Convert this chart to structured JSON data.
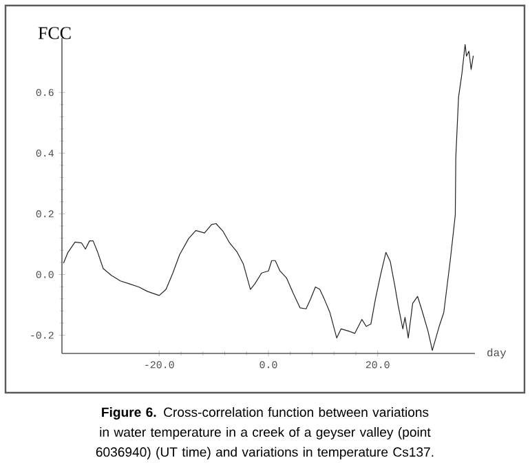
{
  "chart_data": {
    "type": "line",
    "xlabel": "day",
    "ylabel": "FCC",
    "annotations": [
      "**Figure 6.** Cross-correlation function between variations in water temperature in a creek of a geyser valley (point 6036940) (UT time) and variations in temperature Cs137."
    ],
    "xlim": [
      -37.8,
      37.8
    ],
    "ylim": [
      -0.26,
      0.78
    ],
    "xticks": [
      {
        "value": -20,
        "label": "-20.0"
      },
      {
        "value": 0,
        "label": "0.0"
      },
      {
        "value": 20,
        "label": "20.0"
      }
    ],
    "yticks": [
      -0.2,
      {
        "value": 0,
        "label": "0.0"
      },
      0.2,
      0.4,
      0.6
    ],
    "color": "#222222",
    "x": [
      -37.5,
      -36.7,
      -35.4,
      -34.2,
      -33.5,
      -32.75,
      -32.1,
      -31.25,
      -30.25,
      -28.75,
      -27.1,
      -25.4,
      -23.75,
      -22.1,
      -20,
      -18.75,
      -17.5,
      -16.25,
      -14.6,
      -13.3,
      -11.7,
      -10.4,
      -9.6,
      -8.3,
      -7.1,
      -5.8,
      -4.6,
      -3.3,
      -2.5,
      -1.25,
      0,
      0.6,
      1.25,
      2.1,
      3.3,
      4.6,
      5.8,
      6.9,
      7.75,
      8.6,
      9.4,
      10.25,
      11.25,
      12.5,
      13.3,
      14.6,
      15.8,
      17.1,
      17.9,
      18.75,
      19.6,
      20.6,
      21.5,
      22.3,
      23.1,
      23.75,
      24.6,
      25,
      25.6,
      26.4,
      27.3,
      28.1,
      29.2,
      30,
      31.25,
      32.1,
      33.3,
      34.2,
      34.3,
      34.8,
      35.4,
      36,
      36.25,
      36.7,
      37.1,
      37.5
    ],
    "values": [
      0.038,
      0.073,
      0.107,
      0.104,
      0.084,
      0.111,
      0.111,
      0.073,
      0.02,
      -0.003,
      -0.021,
      -0.031,
      -0.041,
      -0.056,
      -0.069,
      -0.049,
      0.005,
      0.066,
      0.119,
      0.145,
      0.137,
      0.165,
      0.168,
      0.142,
      0.104,
      0.076,
      0.035,
      -0.049,
      -0.031,
      0.005,
      0.012,
      0.046,
      0.046,
      0.012,
      -0.011,
      -0.064,
      -0.11,
      -0.113,
      -0.079,
      -0.041,
      -0.049,
      -0.082,
      -0.125,
      -0.209,
      -0.179,
      -0.186,
      -0.194,
      -0.148,
      -0.171,
      -0.163,
      -0.079,
      0.005,
      0.073,
      0.043,
      -0.034,
      -0.102,
      -0.179,
      -0.141,
      -0.209,
      -0.095,
      -0.072,
      -0.118,
      -0.186,
      -0.25,
      -0.171,
      -0.125,
      0.05,
      0.196,
      0.388,
      0.585,
      0.66,
      0.758,
      0.72,
      0.736,
      0.676,
      0.721
    ]
  }
}
